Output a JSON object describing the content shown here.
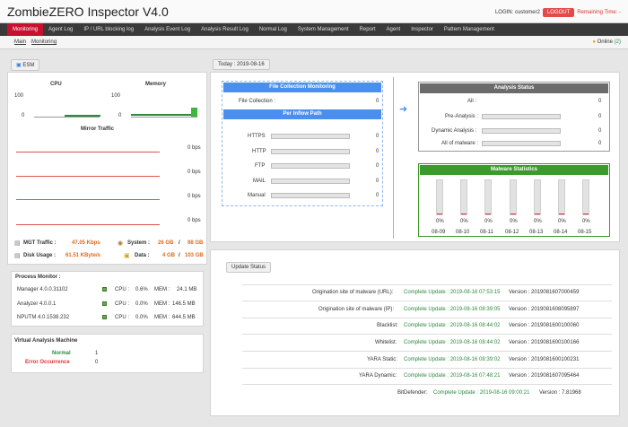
{
  "app": {
    "title": "ZombieZERO Inspector V4.0"
  },
  "login": {
    "label": "LOGIN: customer2",
    "logout": "LOGOUT",
    "remaining": "Remaining Time: -"
  },
  "nav": [
    "Monitoring",
    "Agent Log",
    "IP / URL blocking log",
    "Analysis Event Log",
    "Analysis Result Log",
    "Normal Log",
    "System Management",
    "Report",
    "Agent",
    "Inspector",
    "Pattern Management"
  ],
  "breadcrumb": {
    "main": "Main",
    "monitoring": "Monitoring",
    "sep1": "·",
    "sep2": "·"
  },
  "online": {
    "label": "Online",
    "count": "(2)"
  },
  "esm": {
    "tab": "ESM",
    "cpu_title": "CPU",
    "mem_title": "Memory",
    "cpu_max": "100",
    "cpu_min": "0",
    "mem_max": "100",
    "mem_min": "0",
    "mirror_title": "Mirror Traffic",
    "traffic": [
      "0 bps",
      "0 bps",
      "0 bps",
      "0 bps"
    ],
    "mgt_label": "MGT Traffic :",
    "mgt_value": "47.05 Kbps",
    "system_label": "System :",
    "system_used": "26 GB",
    "system_sep": "/",
    "system_total": "98 GB",
    "disk_label": "Disk Usage :",
    "disk_value": "61.51 KByte/s",
    "data_label": "Data :",
    "data_used": "4 GB",
    "data_sep": "/",
    "data_total": "103 GB"
  },
  "process": {
    "title": "Process Monitor :",
    "rows": [
      {
        "name": "Manager 4.0.0.31102",
        "cpu_label": "CPU :",
        "cpu": "0.6%",
        "mem_label": "MEM :",
        "mem": "24.1 MB"
      },
      {
        "name": "Analyzer 4.0.0.1",
        "cpu_label": "CPU :",
        "cpu": "0.0%",
        "mem_label": "MEM :",
        "mem": "146.5 MB"
      },
      {
        "name": "NPUTM 4.0.1538.232",
        "cpu_label": "CPU :",
        "cpu": "0.0%",
        "mem_label": "MEM :",
        "mem": "644.5 MB"
      }
    ]
  },
  "vam": {
    "title": "Virtual Analysis Machine",
    "normal_label": "Normal",
    "normal": "1",
    "error_label": "Error Occurrence",
    "error": "0"
  },
  "today": {
    "tab": "Today : 2019-08-16"
  },
  "file_collection": {
    "title": "File Collection Monitoring",
    "label": "File Collection :",
    "value": "0",
    "inflow_title": "Per Inflow Path",
    "paths": [
      {
        "name": "HTTPS",
        "value": "0"
      },
      {
        "name": "HTTP",
        "value": "0"
      },
      {
        "name": "FTP",
        "value": "0"
      },
      {
        "name": "MAIL",
        "value": "0"
      },
      {
        "name": "Manual",
        "value": "0"
      }
    ]
  },
  "analysis_status": {
    "title": "Analysis Status",
    "rows": [
      {
        "name": "All :",
        "value": "0"
      },
      {
        "name": "Pre-Analysis :",
        "value": "0"
      },
      {
        "name": "Dynamic Analysis :",
        "value": "0"
      },
      {
        "name": "All of malware :",
        "value": "0"
      }
    ]
  },
  "malware": {
    "title": "Malware Statistics",
    "days": [
      "08-09",
      "08-10",
      "08-11",
      "08-12",
      "08-13",
      "08-14",
      "08-15"
    ],
    "pct": [
      "0%",
      "0%",
      "0%",
      "0%",
      "0%",
      "0%",
      "0%"
    ]
  },
  "update": {
    "tab": "Update Status",
    "rows": [
      {
        "name": "Origination site of malware (URL):",
        "status": "Complete Update : 2019-08-16 07:53:15",
        "version": "Version : 2019081607000459"
      },
      {
        "name": "Origination site of malware (IP):",
        "status": "Complete Update : 2019-08-16 08:39:05",
        "version": "Version : 2019081608095897"
      },
      {
        "name": "Blacklist:",
        "status": "Complete Update : 2019-08-16 08:44:02",
        "version": "Version : 2019081600100060"
      },
      {
        "name": "Whitelist:",
        "status": "Complete Update : 2019-08-16 08:44:02",
        "version": "Version : 2019081600100166"
      },
      {
        "name": "YARA Static:",
        "status": "Complete Update : 2019-08-16 08:39:02",
        "version": "Version : 2019081600100231"
      },
      {
        "name": "YARA Dynamic:",
        "status": "Complete Update : 2019-08-16 07:48:21",
        "version": "Version : 2019081607095464"
      },
      {
        "name": "BitDefender:",
        "status": "Complete Update : 2019-08-16 09:00:21",
        "version": "Version : 7.81968"
      }
    ]
  }
}
